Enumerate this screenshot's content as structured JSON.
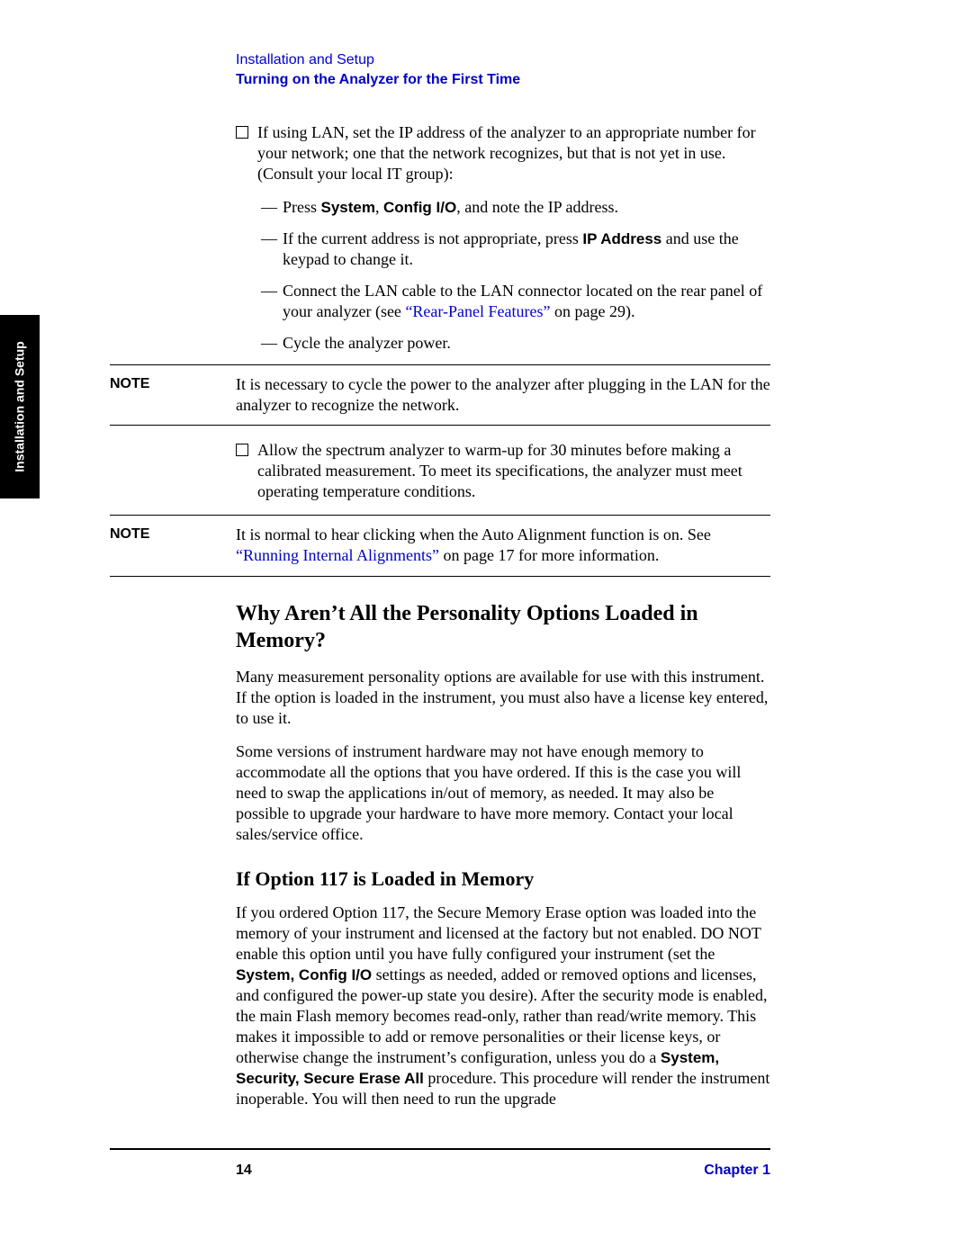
{
  "colors": {
    "link": "#0000c8",
    "text": "#000000",
    "tab_bg": "#000000",
    "tab_text": "#ffffff",
    "page_bg": "#ffffff"
  },
  "sideTab": "Installation and Setup",
  "header": {
    "chapter": "Installation and Setup",
    "section": "Turning on the Analyzer for the First Time"
  },
  "check1": {
    "intro": "If using LAN, set the IP address of the analyzer to an appropriate number for your network; one that the network recognizes, but that is not yet in use. (Consult your local IT group):",
    "sub1_a": "Press ",
    "sub1_b1": "System",
    "sub1_c": ", ",
    "sub1_b2": "Config I/O",
    "sub1_d": ", and note the IP address.",
    "sub2_a": "If the current address is not appropriate, press ",
    "sub2_b": "IP Address",
    "sub2_c": " and use the keypad to change it.",
    "sub3_a": "Connect the LAN cable to the LAN connector located on the rear panel of your analyzer (see ",
    "sub3_link": "“Rear-Panel Features”",
    "sub3_b": " on page 29).",
    "sub4": "Cycle the analyzer power."
  },
  "note1": {
    "label": "NOTE",
    "text": "It is necessary to cycle the power to the analyzer after plugging in the LAN for the analyzer to recognize the network."
  },
  "check2": "Allow the spectrum analyzer to warm-up for 30 minutes before making a calibrated measurement. To meet its specifications, the analyzer must meet operating temperature conditions.",
  "note2": {
    "label": "NOTE",
    "text_a": "It is normal to hear clicking when the Auto Alignment function is on. See ",
    "link": "“Running Internal Alignments”",
    "text_b": " on page 17 for more information."
  },
  "h2": "Why Aren’t All the Personality Options Loaded in Memory?",
  "p1": "Many measurement personality options are available for use with this instrument. If the option is loaded in the instrument, you must also have a license key entered, to use it.",
  "p2": "Some versions of instrument hardware may not have enough memory to accommodate all the options that you have ordered. If this is the case you will need to swap the applications in/out of memory, as needed. It may also be possible to upgrade your hardware to have more memory. Contact your local sales/service office.",
  "h3": "If Option 117 is Loaded in Memory",
  "p3_a": "If you ordered Option 117, the Secure Memory Erase option was loaded into the memory of your instrument and licensed at the factory but not enabled. DO NOT enable this option until you have fully configured your instrument (set the ",
  "p3_b1": "System, Config I/O",
  "p3_c": " settings as needed, added or removed options and licenses, and configured the power-up state you desire). After the security mode is enabled, the main Flash memory becomes read-only, rather than read/write memory. This makes it impossible to add or remove personalities or their license keys, or otherwise change the instrument’s configuration, unless you do a ",
  "p3_b2": "System, Security, Secure Erase All",
  "p3_d": " procedure. This procedure will render the instrument inoperable. You will then need to run the upgrade",
  "footer": {
    "page": "14",
    "chapter": "Chapter 1"
  }
}
